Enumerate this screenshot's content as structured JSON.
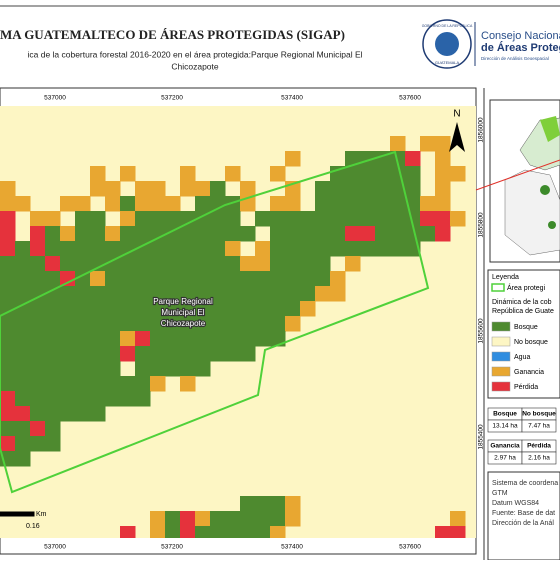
{
  "header": {
    "title": "MA GUATEMALTECO DE ÁREAS PROTEGIDAS  (SIGAP)",
    "subtitle": [
      "ica de la cobertura forestal 2016-2020 en el área protegida:Parque Regional Municipal El",
      "Chicozapote"
    ],
    "logo": {
      "seal_top": "GOBIERNO DE LA REPÚBLICA",
      "seal_bottom": "GUATEMALA",
      "line1": "Consejo Nacional",
      "line2": "de Áreas Protegi",
      "line3": "Dirección de Análisis Geoespacial"
    }
  },
  "map": {
    "x_labels": [
      "537000",
      "537200",
      "537400",
      "537600"
    ],
    "y_labels": [
      "1856000",
      "1855800",
      "1855600",
      "1855400"
    ],
    "area_label": [
      "Parque Regional",
      "Municipal El",
      "Chicozapote"
    ],
    "north": "N",
    "scale_unit": "Km",
    "scale_value": "0.16"
  },
  "legend": {
    "title": "Leyenda",
    "area": "Área protegi",
    "subtitle": [
      "Dinámica de la cob",
      "República de Guate"
    ],
    "items": [
      "Bosque",
      "No bosque",
      "Agua",
      "Ganancia",
      "Pérdida"
    ]
  },
  "tables": [
    {
      "header": [
        "Bosque",
        "No bosque"
      ],
      "row": [
        "13.14 ha",
        "7.47 ha"
      ]
    },
    {
      "header": [
        "Ganancia",
        "Pérdida"
      ],
      "row": [
        "2.97 ha",
        "2.16 ha"
      ]
    }
  ],
  "info": [
    "Sistema de coordena",
    "GTM",
    "Datum WGS84",
    "Fuente: Base de dat",
    "Dirección de la Anál"
  ]
}
